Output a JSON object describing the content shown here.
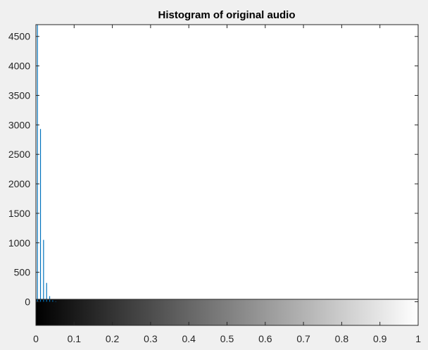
{
  "chart_data": {
    "type": "bar",
    "title": "Histogram of original audio",
    "xlabel": "",
    "ylabel": "",
    "xlim": [
      0,
      1
    ],
    "ylim": [
      -400,
      4700
    ],
    "x_ticks": [
      "0",
      "0.1",
      "0.2",
      "0.3",
      "0.4",
      "0.5",
      "0.6",
      "0.7",
      "0.8",
      "0.9",
      "1"
    ],
    "y_ticks": [
      "0",
      "500",
      "1000",
      "1500",
      "2000",
      "2500",
      "3000",
      "3500",
      "4000",
      "4500"
    ],
    "x": [
      0.004,
      0.012,
      0.02,
      0.028,
      0.036,
      0.044,
      0.052
    ],
    "values": [
      4700,
      2930,
      1050,
      320,
      95,
      25,
      8
    ],
    "colorbar": {
      "range": [
        0,
        1
      ],
      "colors": [
        "#000000",
        "#ffffff"
      ]
    },
    "bar_color": "#0072bd",
    "grid": false,
    "legend": "none"
  }
}
